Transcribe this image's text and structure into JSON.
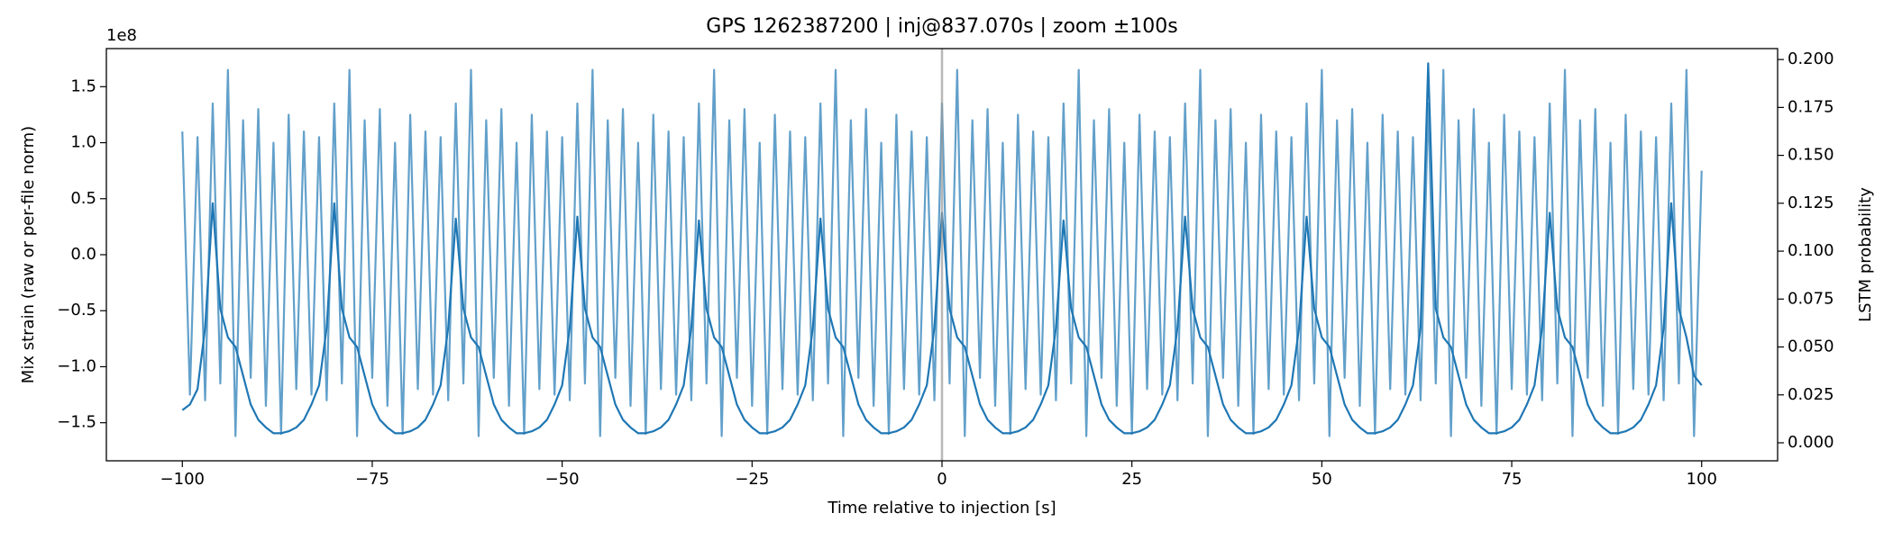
{
  "chart_data": {
    "type": "line",
    "title": "GPS 1262387200 | inj@837.070s | zoom ±100s",
    "x_label": "Time relative to injection [s]",
    "y_label": "Mix strain (raw or per-file norm)",
    "y_offset_label": "1e8",
    "y2_label": "LSTM probability",
    "xlim": [
      -110,
      110
    ],
    "xticks": [
      {
        "value": -100,
        "label": "−100"
      },
      {
        "value": -75,
        "label": "−75"
      },
      {
        "value": -50,
        "label": "−50"
      },
      {
        "value": -25,
        "label": "−25"
      },
      0,
      25,
      50,
      75,
      100
    ],
    "ylim": [
      -1.84,
      1.84
    ],
    "yticks": [
      {
        "value": -1.5,
        "label": "−1.5"
      },
      {
        "value": -1,
        "label": "−1.0"
      },
      {
        "value": -0.5,
        "label": "−0.5"
      },
      {
        "value": 0,
        "label": "0.0"
      },
      0.5,
      {
        "value": 1,
        "label": "1.0"
      },
      1.5
    ],
    "y2lim": [
      -0.0094,
      0.2057
    ],
    "y2ticks": [
      {
        "value": 0,
        "label": "0.000"
      },
      {
        "value": 0.025,
        "label": "0.025"
      },
      {
        "value": 0.05,
        "label": "0.050"
      },
      {
        "value": 0.075,
        "label": "0.075"
      },
      {
        "value": 0.1,
        "label": "0.100"
      },
      {
        "value": 0.125,
        "label": "0.125"
      },
      {
        "value": 0.15,
        "label": "0.150"
      },
      {
        "value": 0.175,
        "label": "0.175"
      },
      {
        "value": 0.2,
        "label": "0.200"
      }
    ],
    "vline": {
      "x": 0,
      "color": "#999999"
    },
    "x": [
      -100,
      -99,
      -98,
      -97,
      -96,
      -95,
      -94,
      -93,
      -92,
      -91,
      -90,
      -89,
      -88,
      -87,
      -86,
      -85,
      -84,
      -83,
      -82,
      -81,
      -80,
      -79,
      -78,
      -77,
      -76,
      -75,
      -74,
      -73,
      -72,
      -71,
      -70,
      -69,
      -68,
      -67,
      -66,
      -65,
      -64,
      -63,
      -62,
      -61,
      -60,
      -59,
      -58,
      -57,
      -56,
      -55,
      -54,
      -53,
      -52,
      -51,
      -50,
      -49,
      -48,
      -47,
      -46,
      -45,
      -44,
      -43,
      -42,
      -41,
      -40,
      -39,
      -38,
      -37,
      -36,
      -35,
      -34,
      -33,
      -32,
      -31,
      -30,
      -29,
      -28,
      -27,
      -26,
      -25,
      -24,
      -23,
      -22,
      -21,
      -20,
      -19,
      -18,
      -17,
      -16,
      -15,
      -14,
      -13,
      -12,
      -11,
      -10,
      -9,
      -8,
      -7,
      -6,
      -5,
      -4,
      -3,
      -2,
      -1,
      0,
      1,
      2,
      3,
      4,
      5,
      6,
      7,
      8,
      9,
      10,
      11,
      12,
      13,
      14,
      15,
      16,
      17,
      18,
      19,
      20,
      21,
      22,
      23,
      24,
      25,
      26,
      27,
      28,
      29,
      30,
      31,
      32,
      33,
      34,
      35,
      36,
      37,
      38,
      39,
      40,
      41,
      42,
      43,
      44,
      45,
      46,
      47,
      48,
      49,
      50,
      51,
      52,
      53,
      54,
      55,
      56,
      57,
      58,
      59,
      60,
      61,
      62,
      63,
      64,
      65,
      66,
      67,
      68,
      69,
      70,
      71,
      72,
      73,
      74,
      75,
      76,
      77,
      78,
      79,
      80,
      81,
      82,
      83,
      84,
      85,
      86,
      87,
      88,
      89,
      90,
      91,
      92,
      93,
      94,
      95,
      96,
      97,
      98,
      99,
      100
    ],
    "series": [
      {
        "axis": "y",
        "color": "#1f77b4",
        "alpha": 0.7,
        "values": [
          1.1,
          -1.25,
          1.05,
          -1.3,
          1.35,
          -1.15,
          1.65,
          -1.62,
          1.2,
          -1.1,
          1.3,
          -1.35,
          1.0,
          -1.6,
          1.25,
          -1.2,
          1.1,
          -1.25,
          1.05,
          -1.3,
          1.35,
          -1.15,
          1.65,
          -1.62,
          1.2,
          -1.1,
          1.3,
          -1.35,
          1.0,
          -1.6,
          1.25,
          -1.2,
          1.1,
          -1.25,
          1.05,
          -1.3,
          1.35,
          -1.15,
          1.65,
          -1.62,
          1.2,
          -1.1,
          1.3,
          -1.35,
          1.0,
          -1.6,
          1.25,
          -1.2,
          1.1,
          -1.25,
          1.05,
          -1.3,
          1.35,
          -1.15,
          1.65,
          -1.62,
          1.2,
          -1.1,
          1.3,
          -1.35,
          1.0,
          -1.6,
          1.25,
          -1.2,
          1.1,
          -1.25,
          1.05,
          -1.3,
          1.35,
          -1.15,
          1.65,
          -1.62,
          1.2,
          -1.1,
          1.3,
          -1.35,
          1.0,
          -1.6,
          1.25,
          -1.2,
          1.1,
          -1.25,
          1.05,
          -1.3,
          1.35,
          -1.15,
          1.65,
          -1.62,
          1.2,
          -1.1,
          1.3,
          -1.35,
          1.0,
          -1.6,
          1.25,
          -1.2,
          1.1,
          -1.25,
          1.05,
          -1.3,
          1.35,
          -1.15,
          1.65,
          -1.62,
          1.2,
          -1.1,
          1.3,
          -1.35,
          1.0,
          -1.6,
          1.25,
          -1.2,
          1.1,
          -1.25,
          1.05,
          -1.3,
          1.35,
          -1.15,
          1.65,
          -1.62,
          1.2,
          -1.1,
          1.3,
          -1.35,
          1.0,
          -1.6,
          1.25,
          -1.2,
          1.1,
          -1.25,
          1.05,
          -1.3,
          1.35,
          -1.15,
          1.65,
          -1.62,
          1.2,
          -1.1,
          1.3,
          -1.35,
          1.0,
          -1.6,
          1.25,
          -1.2,
          1.1,
          -1.25,
          1.05,
          -1.3,
          1.35,
          -1.15,
          1.65,
          -1.62,
          1.2,
          -1.1,
          1.3,
          -1.35,
          1.0,
          -1.6,
          1.25,
          -1.2,
          1.1,
          -1.25,
          1.05,
          -1.3,
          1.35,
          -1.15,
          1.65,
          -1.62,
          1.2,
          -1.1,
          1.3,
          -1.35,
          1.0,
          -1.6,
          1.25,
          -1.2,
          1.1,
          -1.25,
          1.05,
          -1.3,
          1.35,
          -1.15,
          1.65,
          -1.62,
          1.2,
          -1.1,
          1.3,
          -1.35,
          1.0,
          -1.6,
          1.25,
          -1.2,
          1.1,
          -1.25,
          1.05,
          -1.3,
          1.35,
          -1.15,
          1.65,
          -1.62,
          0.75
        ]
      },
      {
        "axis": "y2",
        "color": "#1f77b4",
        "values": [
          0.017,
          0.02,
          0.028,
          0.06,
          0.125,
          0.07,
          0.055,
          0.05,
          0.035,
          0.02,
          0.012,
          0.008,
          0.005,
          0.005,
          0.006,
          0.008,
          0.012,
          0.02,
          0.03,
          0.06,
          0.125,
          0.07,
          0.055,
          0.05,
          0.035,
          0.02,
          0.012,
          0.008,
          0.005,
          0.005,
          0.006,
          0.008,
          0.012,
          0.02,
          0.03,
          0.06,
          0.117,
          0.07,
          0.055,
          0.05,
          0.035,
          0.02,
          0.012,
          0.008,
          0.005,
          0.005,
          0.006,
          0.008,
          0.012,
          0.02,
          0.03,
          0.06,
          0.118,
          0.07,
          0.055,
          0.05,
          0.035,
          0.02,
          0.012,
          0.008,
          0.005,
          0.005,
          0.006,
          0.008,
          0.012,
          0.02,
          0.03,
          0.06,
          0.116,
          0.07,
          0.055,
          0.05,
          0.035,
          0.02,
          0.012,
          0.008,
          0.005,
          0.005,
          0.006,
          0.008,
          0.012,
          0.02,
          0.03,
          0.06,
          0.117,
          0.07,
          0.055,
          0.05,
          0.035,
          0.02,
          0.012,
          0.008,
          0.005,
          0.005,
          0.006,
          0.008,
          0.012,
          0.02,
          0.03,
          0.06,
          0.12,
          0.07,
          0.055,
          0.05,
          0.035,
          0.02,
          0.012,
          0.008,
          0.005,
          0.005,
          0.006,
          0.008,
          0.012,
          0.02,
          0.03,
          0.06,
          0.116,
          0.07,
          0.055,
          0.05,
          0.035,
          0.02,
          0.012,
          0.008,
          0.005,
          0.005,
          0.006,
          0.008,
          0.012,
          0.02,
          0.03,
          0.06,
          0.118,
          0.07,
          0.055,
          0.05,
          0.035,
          0.02,
          0.012,
          0.008,
          0.005,
          0.005,
          0.006,
          0.008,
          0.012,
          0.02,
          0.03,
          0.06,
          0.118,
          0.07,
          0.055,
          0.05,
          0.035,
          0.02,
          0.012,
          0.008,
          0.005,
          0.005,
          0.006,
          0.008,
          0.012,
          0.02,
          0.03,
          0.06,
          0.198,
          0.07,
          0.055,
          0.05,
          0.035,
          0.02,
          0.012,
          0.008,
          0.005,
          0.005,
          0.006,
          0.008,
          0.012,
          0.02,
          0.03,
          0.06,
          0.12,
          0.07,
          0.055,
          0.05,
          0.035,
          0.02,
          0.012,
          0.008,
          0.005,
          0.005,
          0.006,
          0.008,
          0.012,
          0.02,
          0.03,
          0.06,
          0.125,
          0.07,
          0.055,
          0.035,
          0.03
        ]
      }
    ]
  }
}
